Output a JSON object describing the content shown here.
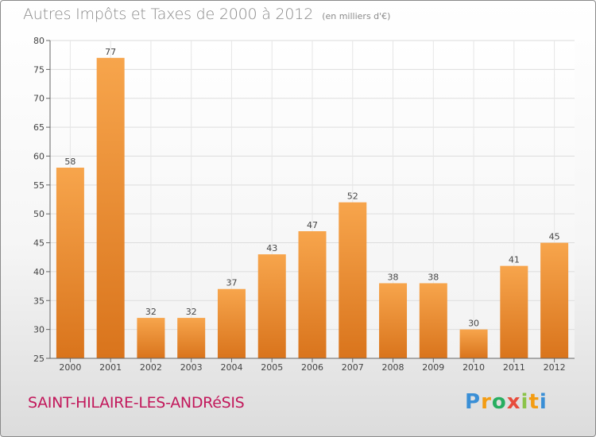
{
  "chart_data": {
    "type": "bar",
    "title": "Autres Impôts et Taxes de 2000 à 2012",
    "subtitle": "(en milliers d'€)",
    "categories": [
      "2000",
      "2001",
      "2002",
      "2003",
      "2004",
      "2005",
      "2006",
      "2007",
      "2008",
      "2009",
      "2010",
      "2011",
      "2012"
    ],
    "values": [
      58,
      77,
      32,
      32,
      37,
      43,
      47,
      52,
      38,
      38,
      30,
      41,
      45
    ],
    "ylim": [
      25,
      80
    ],
    "yticks": [
      25,
      30,
      35,
      40,
      45,
      50,
      55,
      60,
      65,
      70,
      75,
      80
    ],
    "xlabel": "",
    "ylabel": "",
    "grid": true,
    "bar_color": "#f0902f"
  },
  "footer": {
    "city": "SAINT-HILAIRE-LES-ANDRéSIS",
    "logo_letters": [
      "P",
      "r",
      "o",
      "x",
      "i",
      "t",
      "i"
    ],
    "logo_colors": [
      "#3a8fd6",
      "#f39c12",
      "#27ae60",
      "#e74c3c",
      "#8bc34a",
      "#f39c12",
      "#3a8fd6"
    ]
  }
}
